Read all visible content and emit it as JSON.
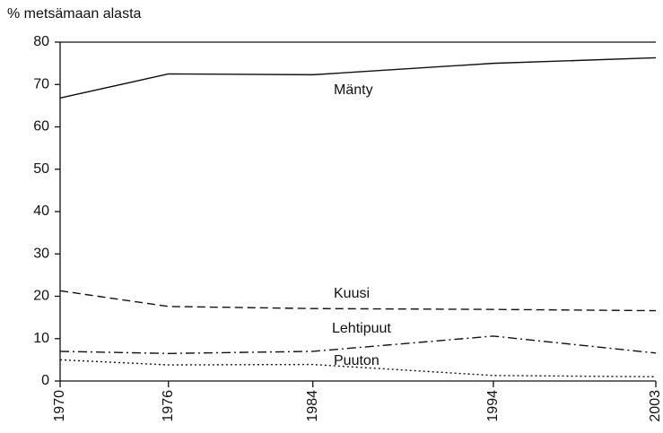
{
  "chart_data": {
    "type": "line",
    "ylabel": "% metsämaan alasta",
    "x": [
      1970,
      1976,
      1984,
      1994,
      2003
    ],
    "xlim": [
      1970,
      2003
    ],
    "xticks": [
      1970,
      1976,
      1984,
      1994,
      2003
    ],
    "ylim": [
      0,
      80
    ],
    "yticks": [
      0,
      10,
      20,
      30,
      40,
      50,
      60,
      70,
      80
    ],
    "grid": false,
    "series": [
      {
        "name": "Mänty",
        "color": "#111111",
        "dash": "solid",
        "values": [
          66.8,
          72.5,
          72.3,
          75.0,
          76.3
        ]
      },
      {
        "name": "Kuusi",
        "color": "#111111",
        "dash": "dashed",
        "values": [
          21.3,
          17.6,
          17.1,
          16.9,
          16.6
        ]
      },
      {
        "name": "Lehtipuut",
        "color": "#111111",
        "dash": "dashdot",
        "values": [
          7.0,
          6.5,
          7.0,
          10.6,
          6.6
        ]
      },
      {
        "name": "Puuton",
        "color": "#111111",
        "dash": "dotted",
        "values": [
          5.0,
          3.8,
          3.9,
          1.3,
          1.0
        ]
      }
    ]
  }
}
